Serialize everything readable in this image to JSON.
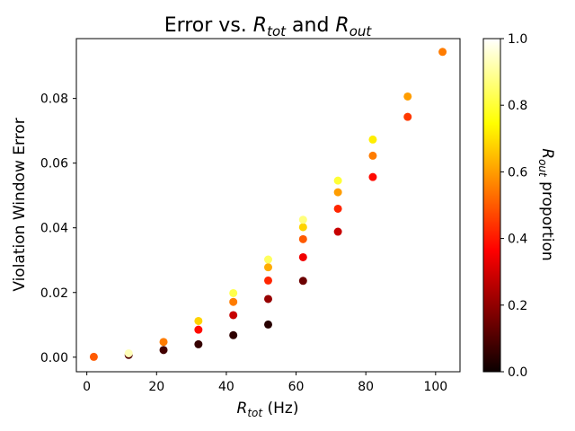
{
  "chart_data": {
    "type": "scatter",
    "title": "Error vs. R_tot and R_out",
    "title_parts": {
      "prefix": "Error vs. ",
      "r1_base": "R",
      "r1_sub": "tot",
      "mid": " and ",
      "r2_base": "R",
      "r2_sub": "out"
    },
    "xlabel": "R_tot (Hz)",
    "xlabel_parts": {
      "base": "R",
      "sub": "tot",
      "suffix": " (Hz)"
    },
    "ylabel": "Violation Window Error",
    "xlim": [
      -3,
      107
    ],
    "ylim": [
      -0.0045,
      0.0985
    ],
    "xticks": [
      0,
      20,
      40,
      60,
      80,
      100
    ],
    "xtick_labels": [
      "0",
      "20",
      "40",
      "60",
      "80",
      "100"
    ],
    "yticks": [
      0.0,
      0.02,
      0.04,
      0.06,
      0.08
    ],
    "ytick_labels": [
      "0.00",
      "0.02",
      "0.04",
      "0.06",
      "0.08"
    ],
    "grid": false,
    "colormap": "hot",
    "colorbar": {
      "label": "R_out proportion",
      "label_parts": {
        "base": "R",
        "sub": "out",
        "suffix": " proportion"
      },
      "range": [
        0.0,
        1.0
      ],
      "ticks": [
        0.0,
        0.2,
        0.4,
        0.6,
        0.8,
        1.0
      ],
      "tick_labels": [
        "0.0",
        "0.2",
        "0.4",
        "0.6",
        "0.8",
        "1.0"
      ]
    },
    "points": [
      {
        "x": 2,
        "y": 0.0001,
        "c": 0.5
      },
      {
        "x": 12,
        "y": 0.0007,
        "c": 0.1
      },
      {
        "x": 12,
        "y": 0.0012,
        "c": 0.93
      },
      {
        "x": 22,
        "y": 0.0022,
        "c": 0.08
      },
      {
        "x": 22,
        "y": 0.0047,
        "c": 0.55
      },
      {
        "x": 32,
        "y": 0.004,
        "c": 0.06
      },
      {
        "x": 32,
        "y": 0.0085,
        "c": 0.38
      },
      {
        "x": 32,
        "y": 0.0112,
        "c": 0.68
      },
      {
        "x": 42,
        "y": 0.0068,
        "c": 0.05
      },
      {
        "x": 42,
        "y": 0.013,
        "c": 0.27
      },
      {
        "x": 42,
        "y": 0.0171,
        "c": 0.55
      },
      {
        "x": 42,
        "y": 0.0198,
        "c": 0.82
      },
      {
        "x": 52,
        "y": 0.0101,
        "c": 0.04
      },
      {
        "x": 52,
        "y": 0.018,
        "c": 0.2
      },
      {
        "x": 52,
        "y": 0.0237,
        "c": 0.42
      },
      {
        "x": 52,
        "y": 0.0278,
        "c": 0.62
      },
      {
        "x": 52,
        "y": 0.0302,
        "c": 0.84
      },
      {
        "x": 62,
        "y": 0.0236,
        "c": 0.14
      },
      {
        "x": 62,
        "y": 0.0309,
        "c": 0.33
      },
      {
        "x": 62,
        "y": 0.0365,
        "c": 0.5
      },
      {
        "x": 62,
        "y": 0.0402,
        "c": 0.68
      },
      {
        "x": 62,
        "y": 0.0425,
        "c": 0.87
      },
      {
        "x": 72,
        "y": 0.0388,
        "c": 0.27
      },
      {
        "x": 72,
        "y": 0.0459,
        "c": 0.42
      },
      {
        "x": 72,
        "y": 0.051,
        "c": 0.6
      },
      {
        "x": 72,
        "y": 0.0546,
        "c": 0.8
      },
      {
        "x": 82,
        "y": 0.0557,
        "c": 0.38
      },
      {
        "x": 82,
        "y": 0.0623,
        "c": 0.55
      },
      {
        "x": 82,
        "y": 0.0673,
        "c": 0.72
      },
      {
        "x": 92,
        "y": 0.0743,
        "c": 0.45
      },
      {
        "x": 92,
        "y": 0.0806,
        "c": 0.6
      },
      {
        "x": 102,
        "y": 0.0944,
        "c": 0.55
      }
    ]
  }
}
